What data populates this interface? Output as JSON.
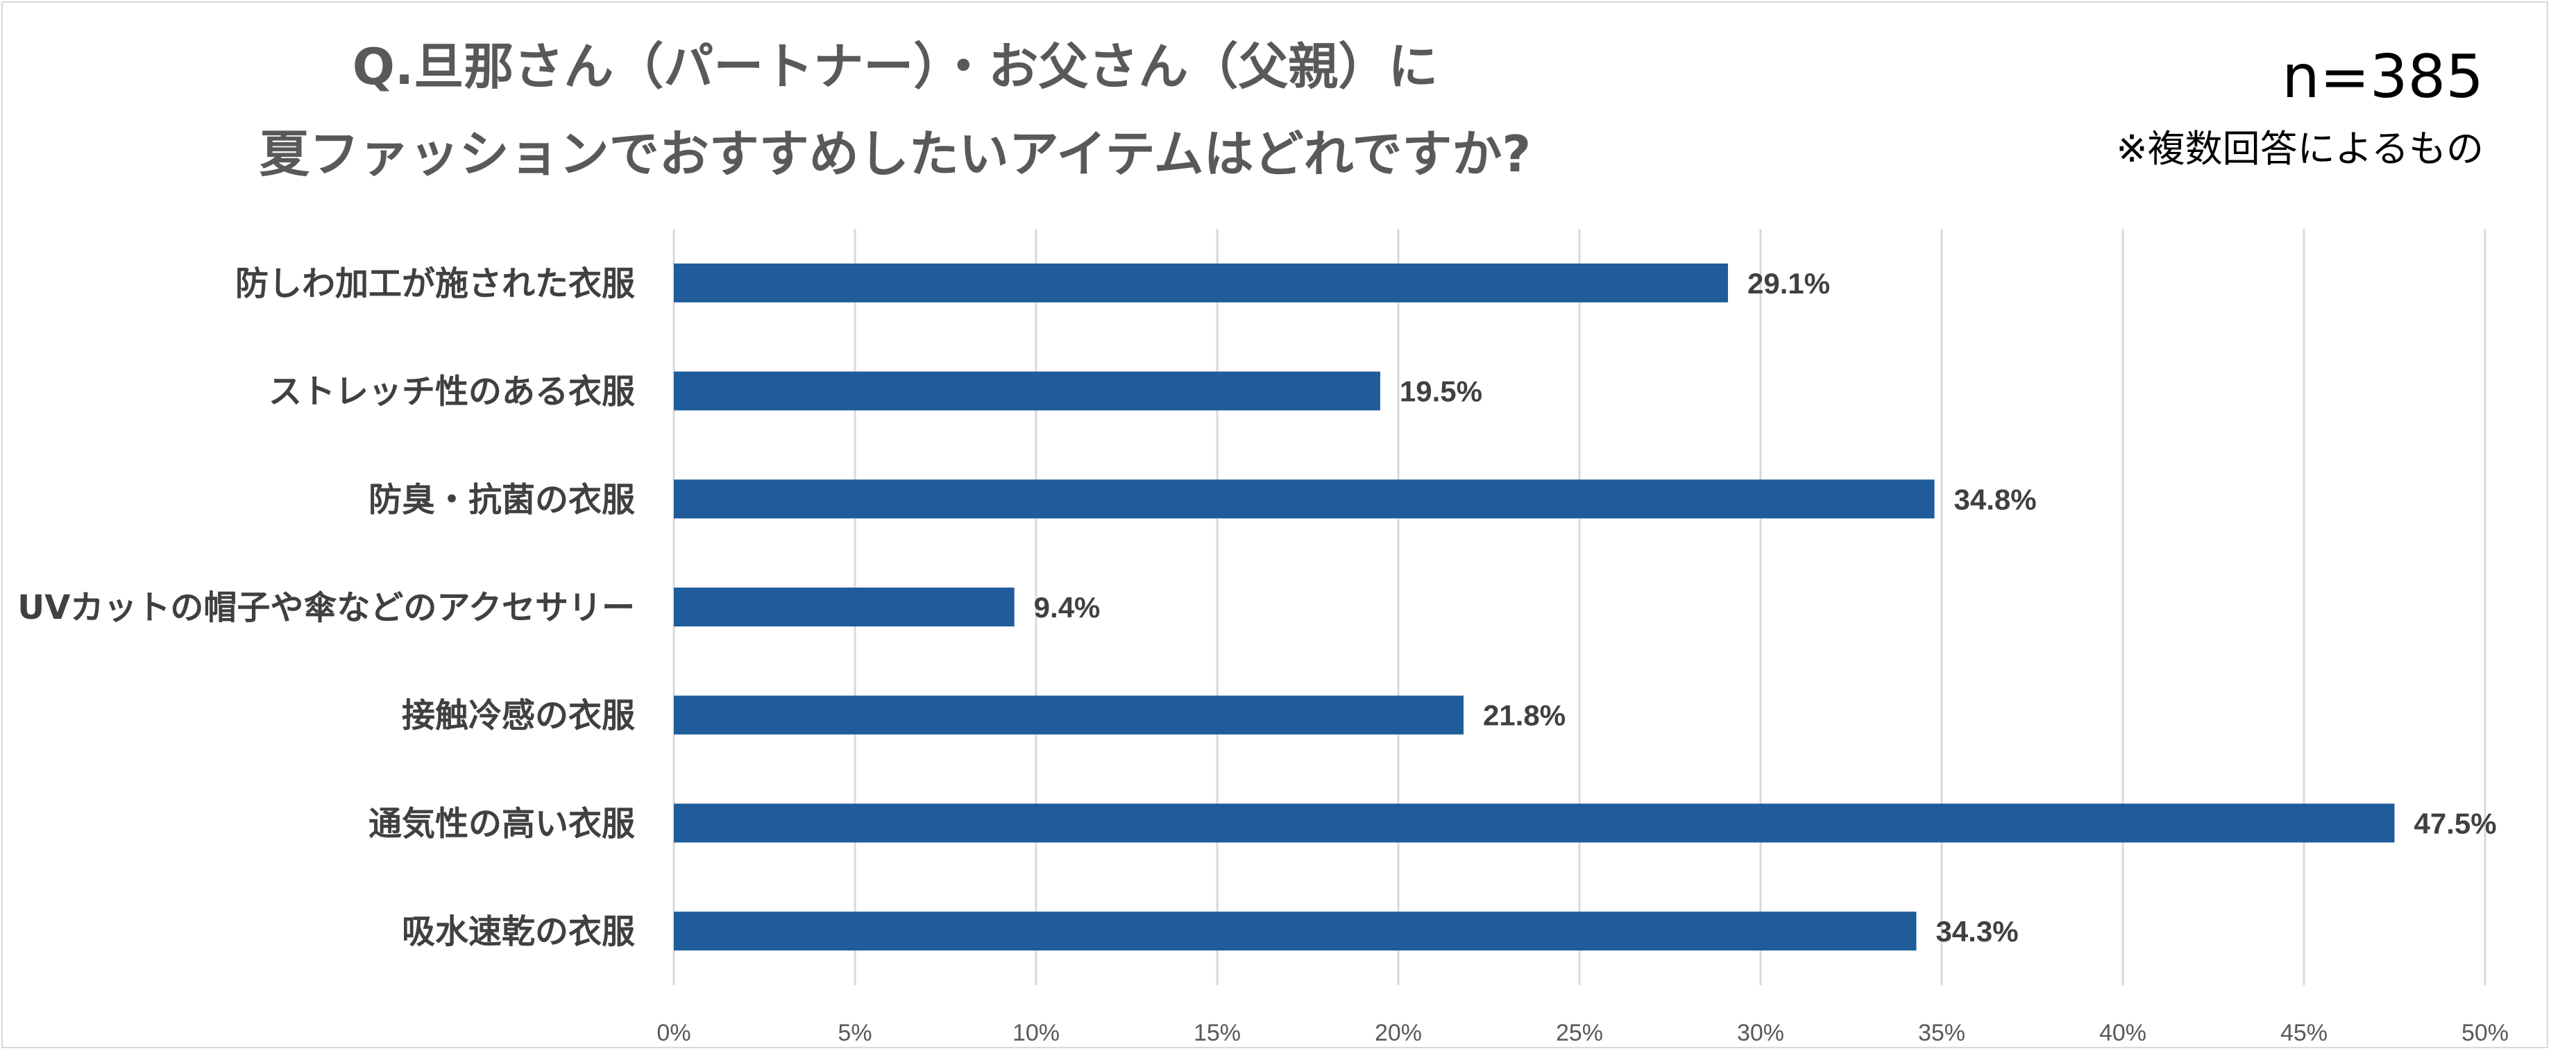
{
  "header": {
    "title_line1": "Q.旦那さん（パートナー）・お父さん（父親）に",
    "title_line2": "夏ファッションでおすすめしたいアイテムはどれですか?",
    "sample_size": "n=385",
    "note": "※複数回答によるもの"
  },
  "chart_data": {
    "type": "bar",
    "orientation": "horizontal",
    "title": "Q.旦那さん（パートナー）・お父さん（父親）に 夏ファッションでおすすめしたいアイテムはどれですか?",
    "xlabel": "",
    "ylabel": "",
    "categories": [
      "防しわ加工が施された衣服",
      "ストレッチ性のある衣服",
      "防臭・抗菌の衣服",
      "UVカットの帽子や傘などのアクセサリー",
      "接触冷感の衣服",
      "通気性の高い衣服",
      "吸水速乾の衣服"
    ],
    "values": [
      29.1,
      19.5,
      34.8,
      9.4,
      21.8,
      47.5,
      34.3
    ],
    "value_labels": [
      "29.1%",
      "19.5%",
      "34.8%",
      "9.4%",
      "21.8%",
      "47.5%",
      "34.3%"
    ],
    "xlim": [
      0,
      50
    ],
    "ticks": [
      0,
      5,
      10,
      15,
      20,
      25,
      30,
      35,
      40,
      45,
      50
    ],
    "tick_labels": [
      "0%",
      "5%",
      "10%",
      "15%",
      "20%",
      "25%",
      "30%",
      "35%",
      "40%",
      "45%",
      "50%"
    ],
    "grid": true,
    "bar_color": "#1f5c99",
    "grid_color": "#d9d9d9"
  }
}
